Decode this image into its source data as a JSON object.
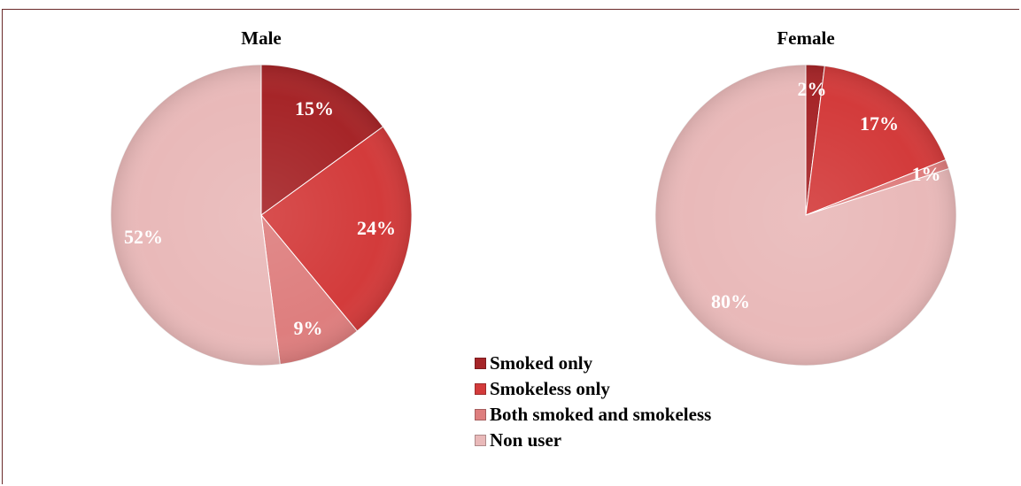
{
  "chart_data": [
    {
      "type": "pie",
      "title": "Male",
      "categories": [
        "Smoked only",
        "Smokeless only",
        "Both smoked and smokeless",
        "Non user"
      ],
      "values": [
        15,
        24,
        9,
        52
      ],
      "labels": [
        "15%",
        "24%",
        "9%",
        "52%"
      ]
    },
    {
      "type": "pie",
      "title": "Female",
      "categories": [
        "Smoked only",
        "Smokeless only",
        "Both smoked and smokeless",
        "Non user"
      ],
      "values": [
        2,
        17,
        1,
        80
      ],
      "labels": [
        "2%",
        "17%",
        "1%",
        "80%"
      ]
    }
  ],
  "legend": {
    "placement": "bottom-center",
    "items": [
      {
        "label": "Smoked only",
        "color": "#a62528"
      },
      {
        "label": "Smokeless only",
        "color": "#d33b3b"
      },
      {
        "label": "Both smoked and smokeless",
        "color": "#de7e7e"
      },
      {
        "label": "Non user",
        "color": "#e9b9b9"
      }
    ]
  },
  "colors": {
    "smoked_only": "#a62528",
    "smokeless_only": "#d33b3b",
    "both": "#de7e7e",
    "non_user": "#e9b9b9",
    "frame": "#6b2a2a"
  }
}
